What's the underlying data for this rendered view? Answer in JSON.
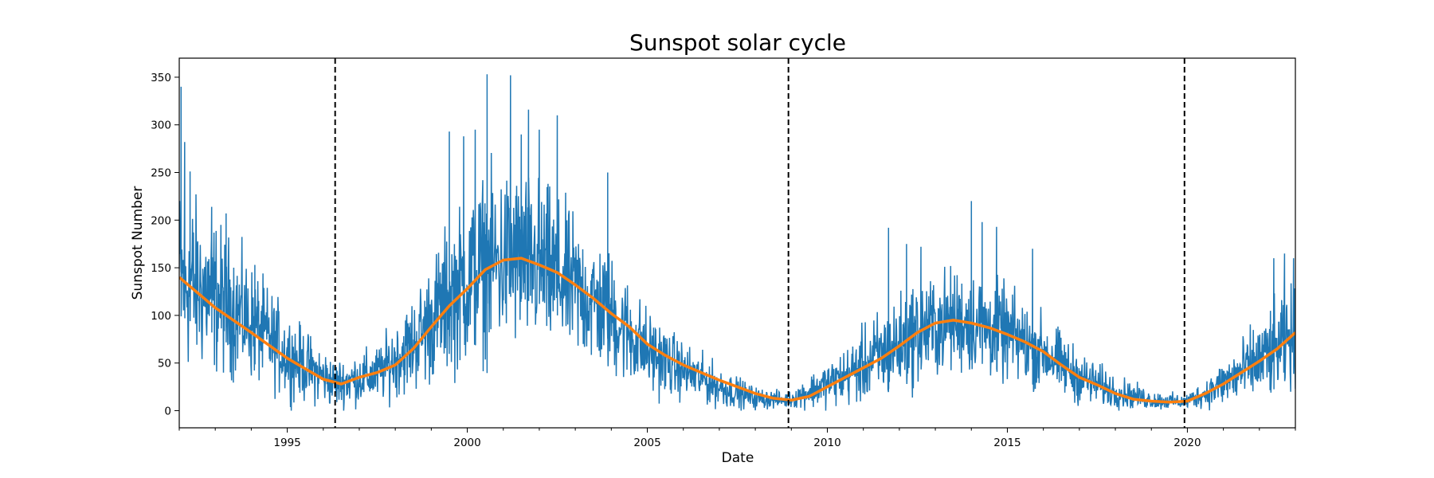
{
  "chart_data": {
    "type": "line",
    "title": "Sunspot solar cycle",
    "xlabel": "Date",
    "ylabel": "Sunspot Number",
    "xlim": [
      1992.0,
      2023.0
    ],
    "ylim": [
      -18,
      370
    ],
    "xticks": [
      1995,
      2000,
      2005,
      2010,
      2015,
      2020
    ],
    "yticks": [
      0,
      50,
      100,
      150,
      200,
      250,
      300,
      350
    ],
    "grid": false,
    "colors": {
      "daily": "#1f77b4",
      "smoothed": "#ff7f0e",
      "cycle_minima": "#000000"
    },
    "cycle_minima": [
      1996.33,
      2008.92,
      2019.92
    ],
    "series": [
      {
        "kind": "daily",
        "x": [
          1992.0,
          1993.0,
          1994.0,
          1995.0,
          1996.33,
          1997.5,
          1998.5,
          1999.5,
          2000.5,
          2001.25,
          2002.0,
          2003.0,
          2004.0,
          2005.0,
          2006.0,
          2007.0,
          2008.0,
          2008.92,
          2009.5,
          2010.5,
          2011.5,
          2012.5,
          2013.5,
          2014.0,
          2015.0,
          2016.0,
          2017.0,
          2018.0,
          2019.0,
          2019.92,
          2020.5,
          2021.5,
          2022.5,
          2023.0
        ],
        "y": [
          140,
          120,
          92,
          58,
          28,
          38,
          70,
          118,
          152,
          160,
          152,
          128,
          100,
          62,
          42,
          25,
          13,
          11,
          20,
          36,
          58,
          82,
          95,
          93,
          80,
          62,
          35,
          20,
          11,
          9,
          18,
          40,
          65,
          80
        ],
        "spread": [
          100,
          80,
          60,
          45,
          25,
          30,
          50,
          80,
          95,
          95,
          90,
          75,
          65,
          45,
          30,
          22,
          12,
          8,
          18,
          30,
          50,
          55,
          55,
          55,
          50,
          40,
          28,
          18,
          10,
          8,
          15,
          35,
          50,
          55
        ],
        "peaks": [
          {
            "x": 1992.05,
            "y": 340
          },
          {
            "x": 1992.15,
            "y": 282
          },
          {
            "x": 1992.3,
            "y": 251
          },
          {
            "x": 1992.9,
            "y": 214
          },
          {
            "x": 1993.3,
            "y": 207
          },
          {
            "x": 1994.1,
            "y": 153
          },
          {
            "x": 1999.5,
            "y": 293
          },
          {
            "x": 1999.9,
            "y": 288
          },
          {
            "x": 2000.22,
            "y": 295
          },
          {
            "x": 2000.55,
            "y": 353
          },
          {
            "x": 2001.2,
            "y": 352
          },
          {
            "x": 2001.5,
            "y": 290
          },
          {
            "x": 2001.7,
            "y": 316
          },
          {
            "x": 2002.0,
            "y": 295
          },
          {
            "x": 2002.5,
            "y": 310
          },
          {
            "x": 2003.9,
            "y": 250
          },
          {
            "x": 2011.7,
            "y": 192
          },
          {
            "x": 2012.2,
            "y": 175
          },
          {
            "x": 2012.6,
            "y": 172
          },
          {
            "x": 2014.0,
            "y": 220
          },
          {
            "x": 2014.3,
            "y": 198
          },
          {
            "x": 2014.7,
            "y": 193
          },
          {
            "x": 2015.7,
            "y": 170
          },
          {
            "x": 2022.4,
            "y": 160
          },
          {
            "x": 2022.7,
            "y": 165
          },
          {
            "x": 2022.95,
            "y": 160
          }
        ]
      },
      {
        "kind": "smoothed",
        "x": [
          1992.0,
          1993.0,
          1994.0,
          1995.0,
          1996.0,
          1996.5,
          1997.0,
          1997.5,
          1998.0,
          1998.5,
          1999.0,
          1999.5,
          2000.0,
          2000.5,
          2001.0,
          2001.5,
          2002.0,
          2002.5,
          2003.0,
          2003.5,
          2004.0,
          2004.5,
          2005.0,
          2005.5,
          2006.0,
          2007.0,
          2008.0,
          2008.5,
          2009.0,
          2009.5,
          2010.0,
          2010.5,
          2011.0,
          2011.5,
          2012.0,
          2012.5,
          2013.0,
          2013.5,
          2014.0,
          2014.5,
          2015.0,
          2015.5,
          2016.0,
          2016.5,
          2017.0,
          2017.5,
          2018.0,
          2018.5,
          2019.0,
          2019.5,
          2020.0,
          2020.5,
          2021.0,
          2021.5,
          2022.0,
          2022.5,
          2023.0
        ],
        "y": [
          140,
          108,
          82,
          55,
          33,
          28,
          35,
          40,
          48,
          65,
          88,
          110,
          128,
          148,
          158,
          160,
          153,
          145,
          132,
          118,
          102,
          88,
          70,
          58,
          48,
          32,
          18,
          13,
          11,
          15,
          25,
          35,
          45,
          55,
          68,
          82,
          92,
          95,
          92,
          87,
          80,
          72,
          62,
          48,
          35,
          27,
          18,
          12,
          10,
          9,
          10,
          18,
          28,
          40,
          52,
          65,
          82
        ]
      }
    ]
  }
}
